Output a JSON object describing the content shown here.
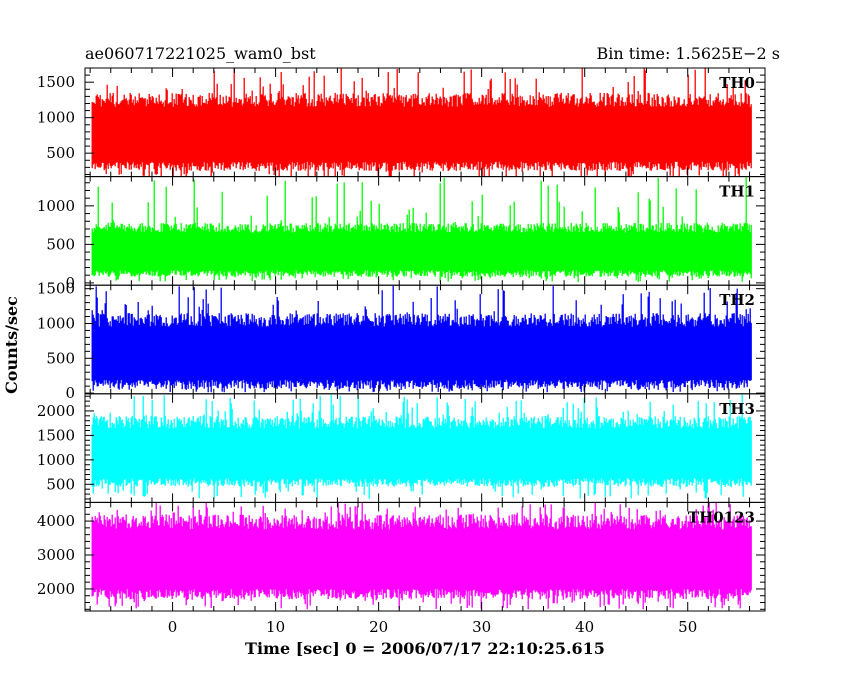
{
  "chart_data": {
    "type": "line",
    "title": "ae060717221025_wam0_bst",
    "subtitle": "Bin time: 1.5625E−2 s",
    "xlabel": "Time [sec] 0 = 2006/07/17 22:10:25.615",
    "ylabel": "Counts/sec",
    "xlim": [
      -8.5,
      57.5
    ],
    "data_xlim": [
      -7.8,
      56.2
    ],
    "x_ticks": [
      0,
      10,
      20,
      30,
      40,
      50
    ],
    "x_tick_labels": [
      "0",
      "10",
      "20",
      "30",
      "40",
      "50"
    ],
    "grid": false,
    "panels": [
      {
        "name": "TH0",
        "color": "#ff0000",
        "ylim": [
          170,
          1700
        ],
        "y_ticks": [
          500,
          1000,
          1500
        ],
        "y_tick_labels": [
          "500",
          "1000",
          "1500"
        ],
        "typical_range": [
          250,
          1350
        ],
        "peak_range": [
          80,
          1750
        ]
      },
      {
        "name": "TH1",
        "color": "#00ff00",
        "ylim": [
          -30,
          1380
        ],
        "y_ticks": [
          0,
          500,
          1000
        ],
        "y_tick_labels": [
          "0",
          "500",
          "1000"
        ],
        "typical_range": [
          80,
          780
        ],
        "peak_range": [
          10,
          1380
        ]
      },
      {
        "name": "TH2",
        "color": "#0000ff",
        "ylim": [
          -10,
          1550
        ],
        "y_ticks": [
          0,
          500,
          1000,
          1500
        ],
        "y_tick_labels": [
          "0",
          "500",
          "1000",
          "1500"
        ],
        "typical_range": [
          60,
          1150
        ],
        "peak_range": [
          10,
          1550
        ]
      },
      {
        "name": "TH3",
        "color": "#00ffff",
        "ylim": [
          130,
          2350
        ],
        "y_ticks": [
          500,
          1000,
          1500,
          2000
        ],
        "y_tick_labels": [
          "500",
          "1000",
          "1500",
          "2000"
        ],
        "typical_range": [
          450,
          1900
        ],
        "peak_range": [
          200,
          2350
        ]
      },
      {
        "name": "TH0123",
        "color": "#ff00ff",
        "ylim": [
          1350,
          4550
        ],
        "y_ticks": [
          2000,
          3000,
          4000
        ],
        "y_tick_labels": [
          "2000",
          "3000",
          "4000"
        ],
        "typical_range": [
          1700,
          4200
        ],
        "peak_range": [
          1400,
          4550
        ]
      }
    ]
  }
}
